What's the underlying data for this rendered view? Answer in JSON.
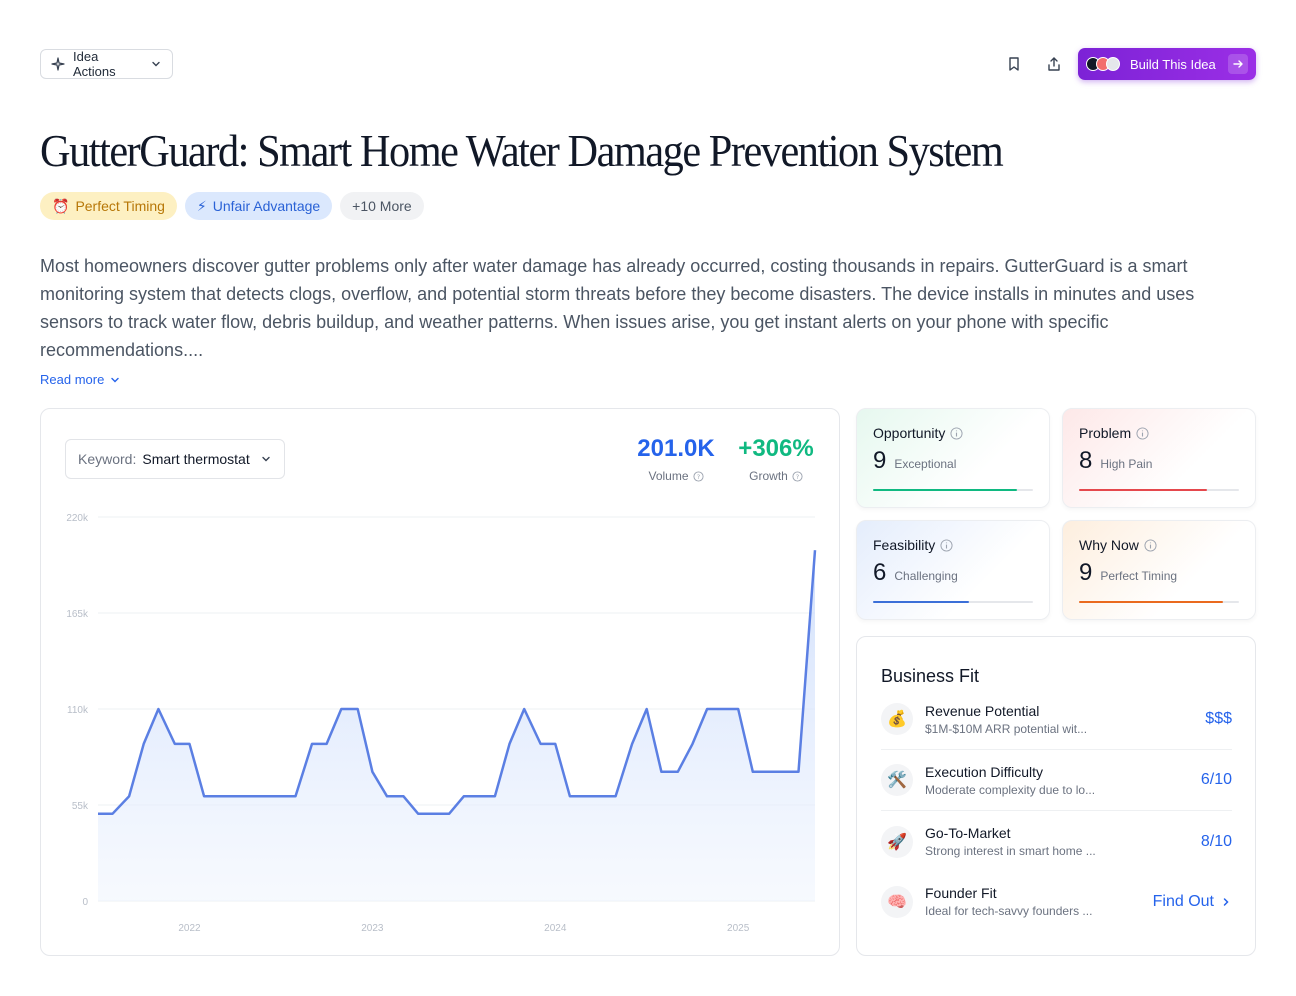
{
  "header": {
    "idea_actions_label": "Idea Actions",
    "build_label": "Build This Idea"
  },
  "title": "GutterGuard: Smart Home Water Damage Prevention System",
  "tags": [
    {
      "icon": "⏰",
      "label": "Perfect Timing"
    },
    {
      "icon": "⚡",
      "label": "Unfair Advantage"
    },
    {
      "label": "+10 More"
    }
  ],
  "description": "Most homeowners discover gutter problems only after water damage has already occurred, costing thousands in repairs. GutterGuard is a smart monitoring system that detects clogs, overflow, and potential storm threats before they become disasters. The device installs in minutes and uses sensors to track water flow, debris buildup, and weather patterns. When issues arise, you get instant alerts on your phone with specific recommendations....",
  "read_more_label": "Read more",
  "trend": {
    "keyword_label": "Keyword:",
    "keyword_value": "Smart thermostat",
    "volume_value": "201.0K",
    "volume_label": "Volume",
    "growth_value": "+306%",
    "growth_label": "Growth",
    "colors": {
      "volume": "#2563eb",
      "growth": "#10b981",
      "line": "#5b7fe3"
    }
  },
  "chart_data": {
    "type": "area",
    "y_tick_labels": [
      "220k",
      "165k",
      "110k",
      "55k",
      "0"
    ],
    "y_ticks": [
      220000,
      165000,
      110000,
      55000,
      0
    ],
    "x_tick_labels": [
      "2022",
      "2023",
      "2024",
      "2025"
    ],
    "x_ticks": [
      2022.0,
      2023.0,
      2024.0,
      2025.0
    ],
    "xlim": [
      2021.5,
      2025.42
    ],
    "ylim": [
      0,
      220000
    ],
    "grid": true,
    "series": [
      {
        "x": [
          2021.5,
          2021.58,
          2021.67,
          2021.75,
          2021.83,
          2021.92,
          2022.0,
          2022.08,
          2022.17,
          2022.25,
          2022.33,
          2022.42,
          2022.5,
          2022.58,
          2022.67,
          2022.75,
          2022.83,
          2022.92,
          2023.0,
          2023.08,
          2023.17,
          2023.25,
          2023.33,
          2023.42,
          2023.5,
          2023.58,
          2023.67,
          2023.75,
          2023.83,
          2023.92,
          2024.0,
          2024.08,
          2024.17,
          2024.25,
          2024.33,
          2024.42,
          2024.5,
          2024.58,
          2024.67,
          2024.75,
          2024.83,
          2024.92,
          2025.0,
          2025.08,
          2025.17,
          2025.25,
          2025.33,
          2025.42
        ],
        "values": [
          50000,
          50000,
          60000,
          90000,
          110000,
          90000,
          90000,
          60000,
          60000,
          60000,
          60000,
          60000,
          60000,
          60000,
          90000,
          90000,
          110000,
          110000,
          74000,
          60000,
          60000,
          50000,
          50000,
          50000,
          60000,
          60000,
          60000,
          90000,
          110000,
          90000,
          90000,
          60000,
          60000,
          60000,
          60000,
          90000,
          110000,
          74000,
          74000,
          90000,
          110000,
          110000,
          110000,
          74000,
          74000,
          74000,
          74000,
          201000
        ]
      }
    ]
  },
  "scores": [
    {
      "title": "Opportunity",
      "value": "9",
      "desc": "Exceptional",
      "fraction": 0.9,
      "color": "#10b981",
      "bg": "linear-gradient(135deg, #e6f8ef 0%, #ffffff 65%)"
    },
    {
      "title": "Problem",
      "value": "8",
      "desc": "High Pain",
      "fraction": 0.8,
      "color": "#e5484d",
      "bg": "linear-gradient(135deg, #fde8e8 0%, #ffffff 65%)"
    },
    {
      "title": "Feasibility",
      "value": "6",
      "desc": "Challenging",
      "fraction": 0.6,
      "color": "#3b6fd8",
      "bg": "linear-gradient(135deg, #e4edfc 0%, #ffffff 65%)"
    },
    {
      "title": "Why Now",
      "value": "9",
      "desc": "Perfect Timing",
      "fraction": 0.9,
      "color": "#ea6a1e",
      "bg": "linear-gradient(135deg, #fdeede 0%, #ffffff 65%)"
    }
  ],
  "business_fit": {
    "title": "Business Fit",
    "rows": [
      {
        "icon": "💰",
        "name": "Revenue Potential",
        "desc": "$1M-$10M ARR potential wit...",
        "value": "$$$"
      },
      {
        "icon": "🛠️",
        "name": "Execution Difficulty",
        "desc": "Moderate complexity due to lo...",
        "value": "6/10"
      },
      {
        "icon": "🚀",
        "name": "Go-To-Market",
        "desc": "Strong interest in smart home ...",
        "value": "8/10"
      },
      {
        "icon": "🧠",
        "name": "Founder Fit",
        "desc": "Ideal for tech-savvy founders ...",
        "value": "Find Out"
      }
    ]
  }
}
